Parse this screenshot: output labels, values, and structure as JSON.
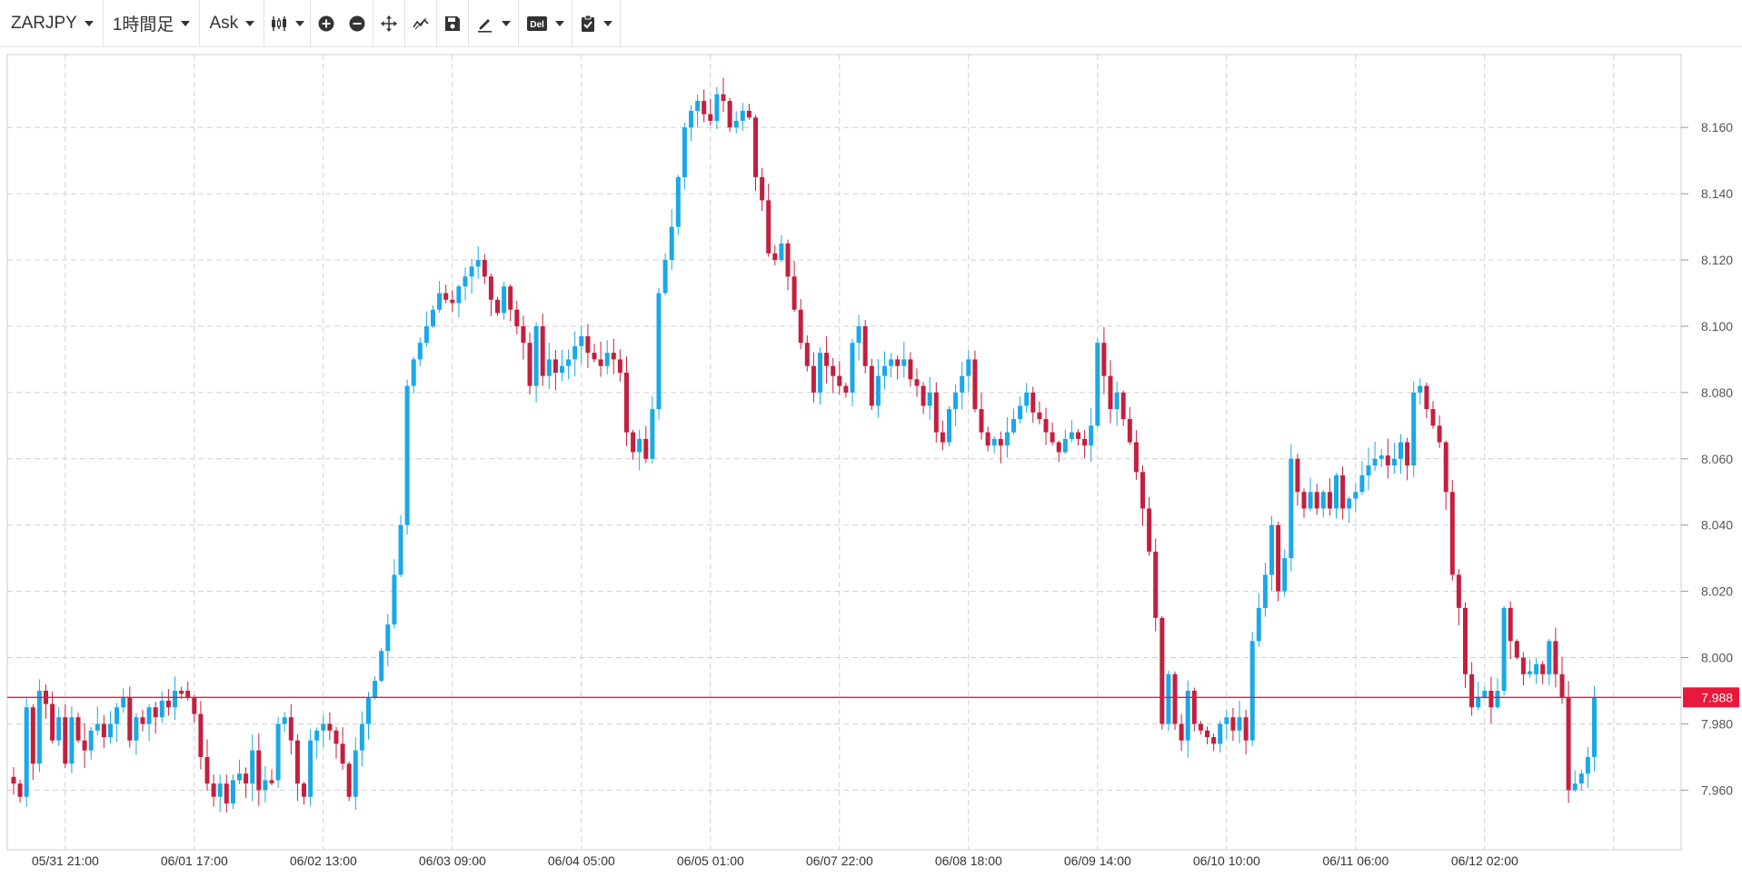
{
  "toolbar": {
    "symbol": "ZARJPY",
    "timeframe": "1時間足",
    "price_type": "Ask",
    "icons": [
      "candlestick-type-icon",
      "zoom-in-icon",
      "zoom-out-icon",
      "move-icon",
      "indicator-icon",
      "save-icon",
      "draw-icon",
      "delete-icon",
      "clipboard-icon"
    ],
    "delete_label": "Del"
  },
  "colors": {
    "up": "#1aa8e8",
    "down": "#c41f3e",
    "grid": "#d0d0d0",
    "price_line": "#e8193c",
    "price_badge": "#e8193c"
  },
  "chart_data": {
    "type": "candlestick",
    "symbol": "ZARJPY",
    "ylim": [
      7.942,
      8.182
    ],
    "y_ticks": [
      7.96,
      7.98,
      8.0,
      8.02,
      8.04,
      8.06,
      8.08,
      8.1,
      8.12,
      8.14,
      8.16
    ],
    "y_tick_labels": [
      "7.960",
      "7.980",
      "8.000",
      "8.020",
      "8.040",
      "8.060",
      "8.080",
      "8.100",
      "8.120",
      "8.140",
      "8.160"
    ],
    "x_tick_labels": [
      "05/31 21:00",
      "06/01 17:00",
      "06/02 13:00",
      "06/03 09:00",
      "06/04 05:00",
      "06/05 01:00",
      "06/07 22:00",
      "06/08 18:00",
      "06/09 14:00",
      "06/10 10:00",
      "06/11 06:00",
      "06/12 02:00"
    ],
    "x_tick_index": [
      8,
      28,
      48,
      68,
      88,
      108,
      128,
      148,
      168,
      188,
      208,
      228
    ],
    "current_price": 7.988,
    "current_price_label": "7.988",
    "closes": [
      7.962,
      7.958,
      7.985,
      7.968,
      7.99,
      7.986,
      7.975,
      7.982,
      7.968,
      7.982,
      7.975,
      7.972,
      7.978,
      7.98,
      7.976,
      7.98,
      7.985,
      7.988,
      7.975,
      7.982,
      7.98,
      7.985,
      7.982,
      7.987,
      7.985,
      7.99,
      7.99,
      7.988,
      7.983,
      7.97,
      7.962,
      7.958,
      7.962,
      7.956,
      7.963,
      7.965,
      7.962,
      7.972,
      7.96,
      7.963,
      7.963,
      7.98,
      7.982,
      7.975,
      7.962,
      7.958,
      7.975,
      7.978,
      7.98,
      7.978,
      7.974,
      7.968,
      7.958,
      7.972,
      7.98,
      7.988,
      7.993,
      8.002,
      8.01,
      8.025,
      8.04,
      8.082,
      8.09,
      8.095,
      8.1,
      8.105,
      8.11,
      8.108,
      8.107,
      8.112,
      8.115,
      8.118,
      8.12,
      8.115,
      8.108,
      8.104,
      8.112,
      8.105,
      8.1,
      8.095,
      8.082,
      8.1,
      8.085,
      8.09,
      8.086,
      8.088,
      8.09,
      8.094,
      8.097,
      8.092,
      8.09,
      8.088,
      8.092,
      8.09,
      8.086,
      8.068,
      8.062,
      8.066,
      8.06,
      8.075,
      8.11,
      8.12,
      8.13,
      8.145,
      8.16,
      8.165,
      8.168,
      8.164,
      8.162,
      8.17,
      8.168,
      8.16,
      8.162,
      8.165,
      8.163,
      8.145,
      8.138,
      8.122,
      8.12,
      8.125,
      8.115,
      8.105,
      8.095,
      8.088,
      8.08,
      8.092,
      8.088,
      8.085,
      8.082,
      8.08,
      8.095,
      8.1,
      8.088,
      8.076,
      8.085,
      8.088,
      8.09,
      8.088,
      8.09,
      8.084,
      8.082,
      8.076,
      8.08,
      8.068,
      8.065,
      8.075,
      8.08,
      8.085,
      8.09,
      8.075,
      8.068,
      8.064,
      8.066,
      8.064,
      8.068,
      8.072,
      8.076,
      8.08,
      8.074,
      8.072,
      8.068,
      8.065,
      8.062,
      8.066,
      8.068,
      8.066,
      8.064,
      8.07,
      8.095,
      8.085,
      8.075,
      8.08,
      8.072,
      8.065,
      8.056,
      8.045,
      8.032,
      8.012,
      7.98,
      7.995,
      7.98,
      7.975,
      7.99,
      7.98,
      7.978,
      7.976,
      7.974,
      7.98,
      7.982,
      7.978,
      7.982,
      7.975,
      8.005,
      8.015,
      8.025,
      8.04,
      8.02,
      8.03,
      8.06,
      8.05,
      8.045,
      8.05,
      8.045,
      8.05,
      8.045,
      8.055,
      8.045,
      8.048,
      8.05,
      8.055,
      8.058,
      8.06,
      8.061,
      8.058,
      8.06,
      8.065,
      8.058,
      8.08,
      8.082,
      8.075,
      8.07,
      8.065,
      8.05,
      8.025,
      8.015,
      7.995,
      7.985,
      7.988,
      7.99,
      7.985,
      7.99,
      8.015,
      8.005,
      8.0,
      7.995,
      7.995,
      7.998,
      7.995,
      8.005,
      7.995,
      7.988,
      7.96,
      7.962,
      7.965,
      7.97,
      7.988
    ],
    "timeframe": "1時間足",
    "price_type": "Ask"
  }
}
